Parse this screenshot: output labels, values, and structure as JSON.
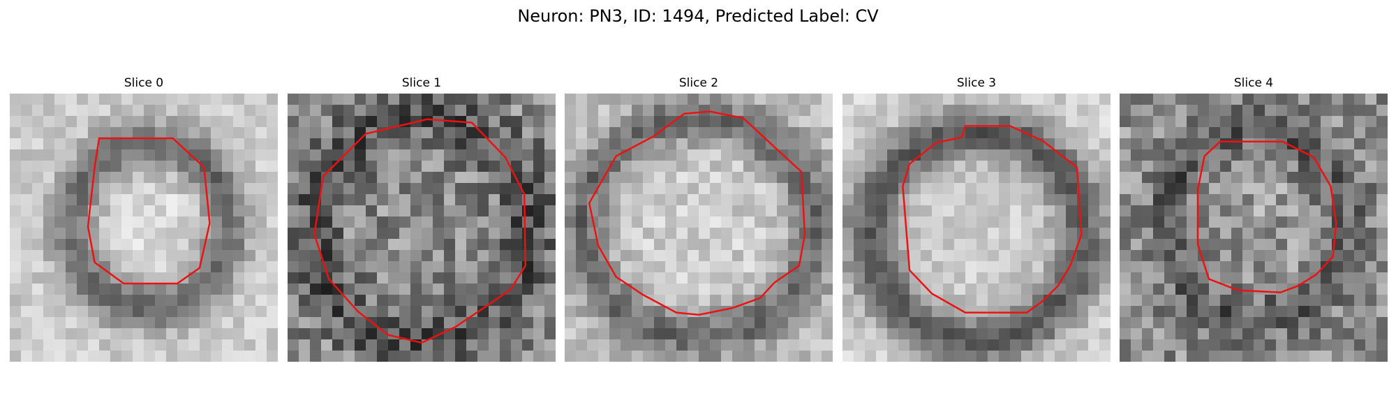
{
  "figure": {
    "title": "Neuron: PN3, ID: 1494, Predicted Label: CV",
    "contour_color": "#ee1111",
    "colormap": "gray",
    "panels": [
      {
        "title": "Slice 0"
      },
      {
        "title": "Slice 1"
      },
      {
        "title": "Slice 2"
      },
      {
        "title": "Slice 3"
      },
      {
        "title": "Slice 4"
      }
    ]
  }
}
